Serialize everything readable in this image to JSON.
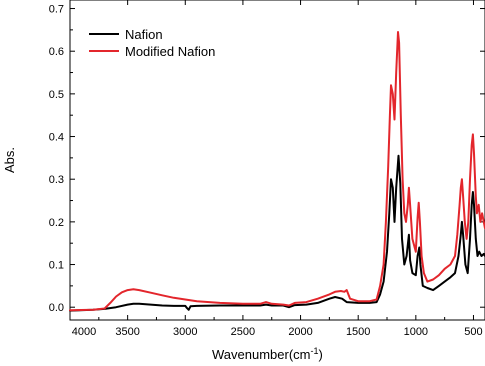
{
  "chart_data": {
    "type": "line",
    "title": "",
    "xlabel": "Wavenumber(cm",
    "xlabel_sup": "-1",
    "xlabel_close": ")",
    "ylabel": "Abs.",
    "xlim": [
      4000,
      400
    ],
    "ylim": [
      -0.03,
      0.72
    ],
    "x_reversed": true,
    "grid": false,
    "legend_position": "top-left",
    "x_ticks": [
      {
        "value": 4000,
        "label": "4000"
      },
      {
        "value": 3500,
        "label": "3500"
      },
      {
        "value": 3000,
        "label": "3000"
      },
      {
        "value": 2500,
        "label": "2500"
      },
      {
        "value": 2000,
        "label": "2000"
      },
      {
        "value": 1500,
        "label": "1500"
      },
      {
        "value": 1000,
        "label": "1000"
      },
      {
        "value": 500,
        "label": "500"
      }
    ],
    "y_ticks": [
      {
        "value": 0.0,
        "label": "0.0"
      },
      {
        "value": 0.1,
        "label": "0.1"
      },
      {
        "value": 0.2,
        "label": "0.2"
      },
      {
        "value": 0.3,
        "label": "0.3"
      },
      {
        "value": 0.4,
        "label": "0.4"
      },
      {
        "value": 0.5,
        "label": "0.5"
      },
      {
        "value": 0.6,
        "label": "0.6"
      },
      {
        "value": 0.7,
        "label": "0.7"
      }
    ],
    "series": [
      {
        "name": "Nafion",
        "color": "#000000",
        "points": [
          [
            4000,
            -0.008
          ],
          [
            3800,
            -0.006
          ],
          [
            3700,
            -0.004
          ],
          [
            3600,
            0.0
          ],
          [
            3500,
            0.006
          ],
          [
            3450,
            0.008
          ],
          [
            3400,
            0.008
          ],
          [
            3300,
            0.006
          ],
          [
            3200,
            0.004
          ],
          [
            3100,
            0.003
          ],
          [
            3000,
            0.003
          ],
          [
            2985,
            -0.002
          ],
          [
            2970,
            -0.006
          ],
          [
            2955,
            0.002
          ],
          [
            2900,
            0.003
          ],
          [
            2700,
            0.004
          ],
          [
            2500,
            0.004
          ],
          [
            2350,
            0.004
          ],
          [
            2300,
            0.006
          ],
          [
            2250,
            0.004
          ],
          [
            2150,
            0.004
          ],
          [
            2100,
            0.0
          ],
          [
            2050,
            0.005
          ],
          [
            1950,
            0.006
          ],
          [
            1850,
            0.01
          ],
          [
            1750,
            0.02
          ],
          [
            1700,
            0.024
          ],
          [
            1640,
            0.02
          ],
          [
            1600,
            0.012
          ],
          [
            1500,
            0.01
          ],
          [
            1400,
            0.01
          ],
          [
            1340,
            0.012
          ],
          [
            1310,
            0.03
          ],
          [
            1280,
            0.06
          ],
          [
            1250,
            0.13
          ],
          [
            1230,
            0.22
          ],
          [
            1215,
            0.3
          ],
          [
            1200,
            0.28
          ],
          [
            1185,
            0.2
          ],
          [
            1170,
            0.28
          ],
          [
            1150,
            0.355
          ],
          [
            1135,
            0.29
          ],
          [
            1120,
            0.16
          ],
          [
            1100,
            0.1
          ],
          [
            1080,
            0.12
          ],
          [
            1060,
            0.17
          ],
          [
            1050,
            0.11
          ],
          [
            1030,
            0.08
          ],
          [
            1000,
            0.075
          ],
          [
            985,
            0.12
          ],
          [
            970,
            0.14
          ],
          [
            960,
            0.1
          ],
          [
            940,
            0.05
          ],
          [
            900,
            0.045
          ],
          [
            850,
            0.04
          ],
          [
            800,
            0.05
          ],
          [
            750,
            0.06
          ],
          [
            700,
            0.07
          ],
          [
            660,
            0.08
          ],
          [
            630,
            0.12
          ],
          [
            610,
            0.17
          ],
          [
            600,
            0.2
          ],
          [
            590,
            0.17
          ],
          [
            570,
            0.1
          ],
          [
            550,
            0.08
          ],
          [
            530,
            0.16
          ],
          [
            515,
            0.24
          ],
          [
            505,
            0.27
          ],
          [
            495,
            0.24
          ],
          [
            480,
            0.16
          ],
          [
            465,
            0.12
          ],
          [
            450,
            0.13
          ],
          [
            430,
            0.12
          ],
          [
            410,
            0.125
          ],
          [
            400,
            0.12
          ]
        ]
      },
      {
        "name": "Modified Nafion",
        "color": "#e3262c",
        "points": [
          [
            4000,
            -0.007
          ],
          [
            3800,
            -0.006
          ],
          [
            3700,
            -0.003
          ],
          [
            3650,
            0.01
          ],
          [
            3600,
            0.025
          ],
          [
            3550,
            0.035
          ],
          [
            3500,
            0.04
          ],
          [
            3450,
            0.042
          ],
          [
            3400,
            0.04
          ],
          [
            3300,
            0.034
          ],
          [
            3200,
            0.028
          ],
          [
            3100,
            0.022
          ],
          [
            3000,
            0.018
          ],
          [
            2900,
            0.014
          ],
          [
            2700,
            0.01
          ],
          [
            2500,
            0.008
          ],
          [
            2350,
            0.008
          ],
          [
            2300,
            0.012
          ],
          [
            2250,
            0.008
          ],
          [
            2150,
            0.006
          ],
          [
            2100,
            0.004
          ],
          [
            2050,
            0.01
          ],
          [
            1950,
            0.012
          ],
          [
            1850,
            0.02
          ],
          [
            1750,
            0.03
          ],
          [
            1700,
            0.036
          ],
          [
            1650,
            0.038
          ],
          [
            1620,
            0.036
          ],
          [
            1600,
            0.04
          ],
          [
            1570,
            0.02
          ],
          [
            1500,
            0.014
          ],
          [
            1400,
            0.014
          ],
          [
            1340,
            0.018
          ],
          [
            1310,
            0.05
          ],
          [
            1280,
            0.1
          ],
          [
            1260,
            0.2
          ],
          [
            1240,
            0.33
          ],
          [
            1225,
            0.45
          ],
          [
            1215,
            0.52
          ],
          [
            1200,
            0.5
          ],
          [
            1185,
            0.44
          ],
          [
            1170,
            0.55
          ],
          [
            1155,
            0.645
          ],
          [
            1145,
            0.62
          ],
          [
            1130,
            0.45
          ],
          [
            1115,
            0.3
          ],
          [
            1100,
            0.22
          ],
          [
            1085,
            0.2
          ],
          [
            1070,
            0.24
          ],
          [
            1060,
            0.28
          ],
          [
            1050,
            0.24
          ],
          [
            1030,
            0.16
          ],
          [
            1000,
            0.13
          ],
          [
            985,
            0.21
          ],
          [
            975,
            0.245
          ],
          [
            965,
            0.2
          ],
          [
            950,
            0.12
          ],
          [
            930,
            0.08
          ],
          [
            900,
            0.06
          ],
          [
            850,
            0.065
          ],
          [
            800,
            0.075
          ],
          [
            750,
            0.09
          ],
          [
            700,
            0.1
          ],
          [
            660,
            0.12
          ],
          [
            640,
            0.17
          ],
          [
            620,
            0.24
          ],
          [
            610,
            0.28
          ],
          [
            600,
            0.3
          ],
          [
            590,
            0.26
          ],
          [
            575,
            0.2
          ],
          [
            560,
            0.16
          ],
          [
            545,
            0.2
          ],
          [
            530,
            0.3
          ],
          [
            515,
            0.38
          ],
          [
            505,
            0.405
          ],
          [
            495,
            0.36
          ],
          [
            480,
            0.26
          ],
          [
            470,
            0.22
          ],
          [
            455,
            0.24
          ],
          [
            440,
            0.2
          ],
          [
            425,
            0.22
          ],
          [
            410,
            0.2
          ],
          [
            400,
            0.185
          ]
        ]
      }
    ]
  }
}
